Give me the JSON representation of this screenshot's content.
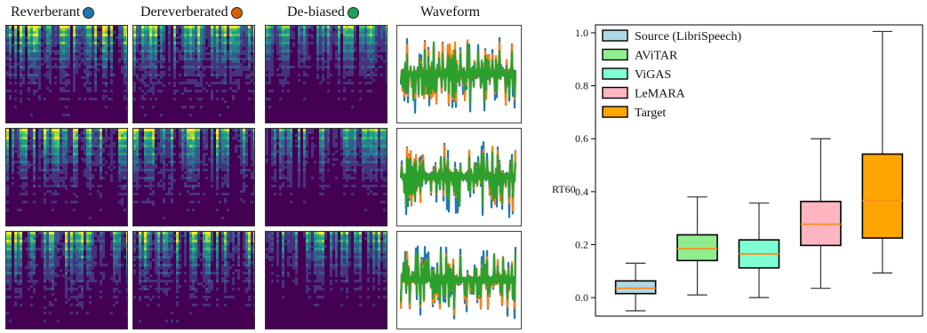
{
  "panel_titles": [
    {
      "label": "Reverberant",
      "dot_color": "#1f77b4"
    },
    {
      "label": "Dereverberated",
      "dot_color": "#d95f02"
    },
    {
      "label": "De-biased",
      "dot_color": "#1aa35a"
    },
    {
      "label": "Waveform",
      "dot_color": ""
    }
  ],
  "wave_colors": [
    "#1f77b4",
    "#ff7f0e",
    "#2ca02c"
  ],
  "chart_data": {
    "type": "box",
    "ylabel": "RT60",
    "ylim": [
      -0.07,
      1.03
    ],
    "yticks": [
      0.0,
      0.2,
      0.4,
      0.6,
      0.8,
      1.0
    ],
    "legend_position": "top-left",
    "series": [
      {
        "name": "Source (LibriSpeech)",
        "color": "#add8e6",
        "whisker_low": -0.05,
        "q1": 0.015,
        "median": 0.035,
        "q3": 0.063,
        "whisker_high": 0.13
      },
      {
        "name": "AViTAR",
        "color": "#90ee90",
        "whisker_low": 0.01,
        "q1": 0.14,
        "median": 0.185,
        "q3": 0.237,
        "whisker_high": 0.38
      },
      {
        "name": "ViGAS",
        "color": "#7fffd4",
        "whisker_low": 0.0,
        "q1": 0.112,
        "median": 0.165,
        "q3": 0.218,
        "whisker_high": 0.357
      },
      {
        "name": "LeMARA",
        "color": "#ffb6c1",
        "whisker_low": 0.035,
        "q1": 0.197,
        "median": 0.277,
        "q3": 0.363,
        "whisker_high": 0.6
      },
      {
        "name": "Target",
        "color": "#ffa500",
        "whisker_low": 0.093,
        "q1": 0.225,
        "median": 0.367,
        "q3": 0.542,
        "whisker_high": 1.005
      }
    ],
    "median_color": "#ff8c1a"
  }
}
